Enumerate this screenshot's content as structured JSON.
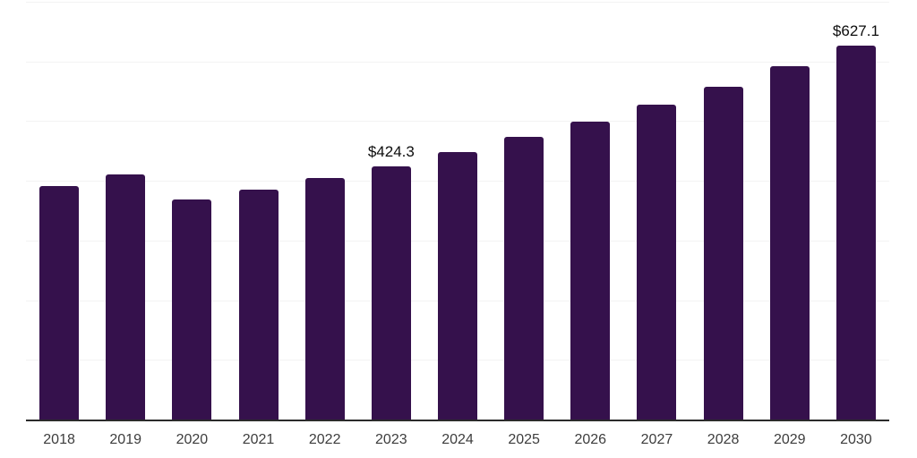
{
  "chart_data": {
    "type": "bar",
    "title": "",
    "xlabel": "",
    "ylabel": "",
    "categories": [
      "2018",
      "2019",
      "2020",
      "2021",
      "2022",
      "2023",
      "2024",
      "2025",
      "2026",
      "2027",
      "2028",
      "2029",
      "2030"
    ],
    "values": [
      391.2,
      410.7,
      368.6,
      385.0,
      405.0,
      424.3,
      448.2,
      473.6,
      499.5,
      527.2,
      557.4,
      592.0,
      627.1
    ],
    "labeled_points": [
      {
        "category": "2023",
        "label": "$424.3"
      },
      {
        "category": "2030",
        "label": "$627.1"
      }
    ],
    "ylim": [
      0,
      700
    ],
    "grid": {
      "visible": true,
      "interval": 100
    },
    "legend_position": "none",
    "colors": {
      "bar": "#35114C",
      "gridline": "#f3f3f3",
      "axis_line": "#2b2b2b",
      "x_label": "#3d3d3d",
      "value_label": "#0d0d0d",
      "background": "#ffffff"
    }
  }
}
